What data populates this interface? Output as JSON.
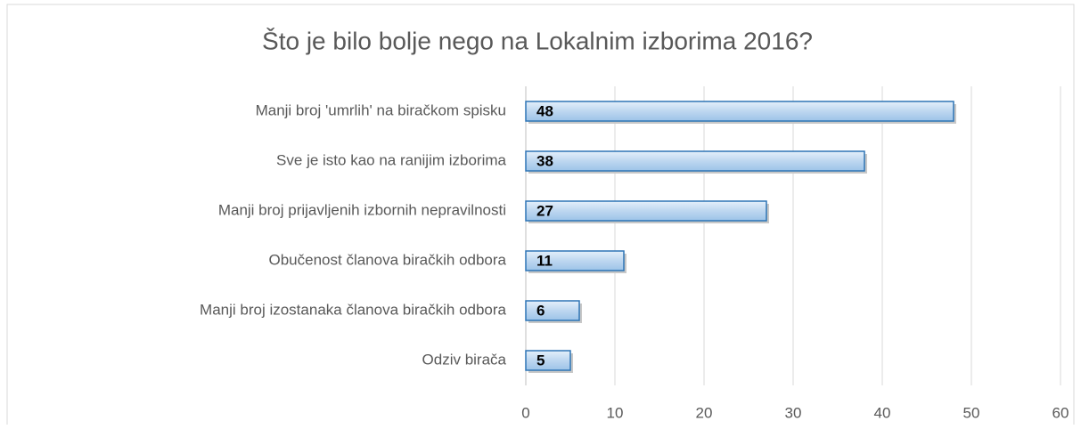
{
  "chart_data": {
    "type": "bar",
    "orientation": "horizontal",
    "title": "Što je bilo bolje nego na Lokalnim izborima 2016?",
    "categories": [
      "Manji broj 'umrlih' na biračkom spisku",
      "Sve je isto kao na ranijim izborima",
      "Manji broj prijavljenih izbornih nepravilnosti",
      "Obučenost članova biračkih odbora",
      "Manji broj izostanaka članova biračkih odbora",
      "Odziv birača"
    ],
    "values": [
      48,
      38,
      27,
      11,
      6,
      5
    ],
    "color": "#bdd7f0",
    "xlim": [
      0,
      60
    ],
    "xticks": [
      0,
      10,
      20,
      30,
      40,
      50,
      60
    ],
    "grid": true
  }
}
